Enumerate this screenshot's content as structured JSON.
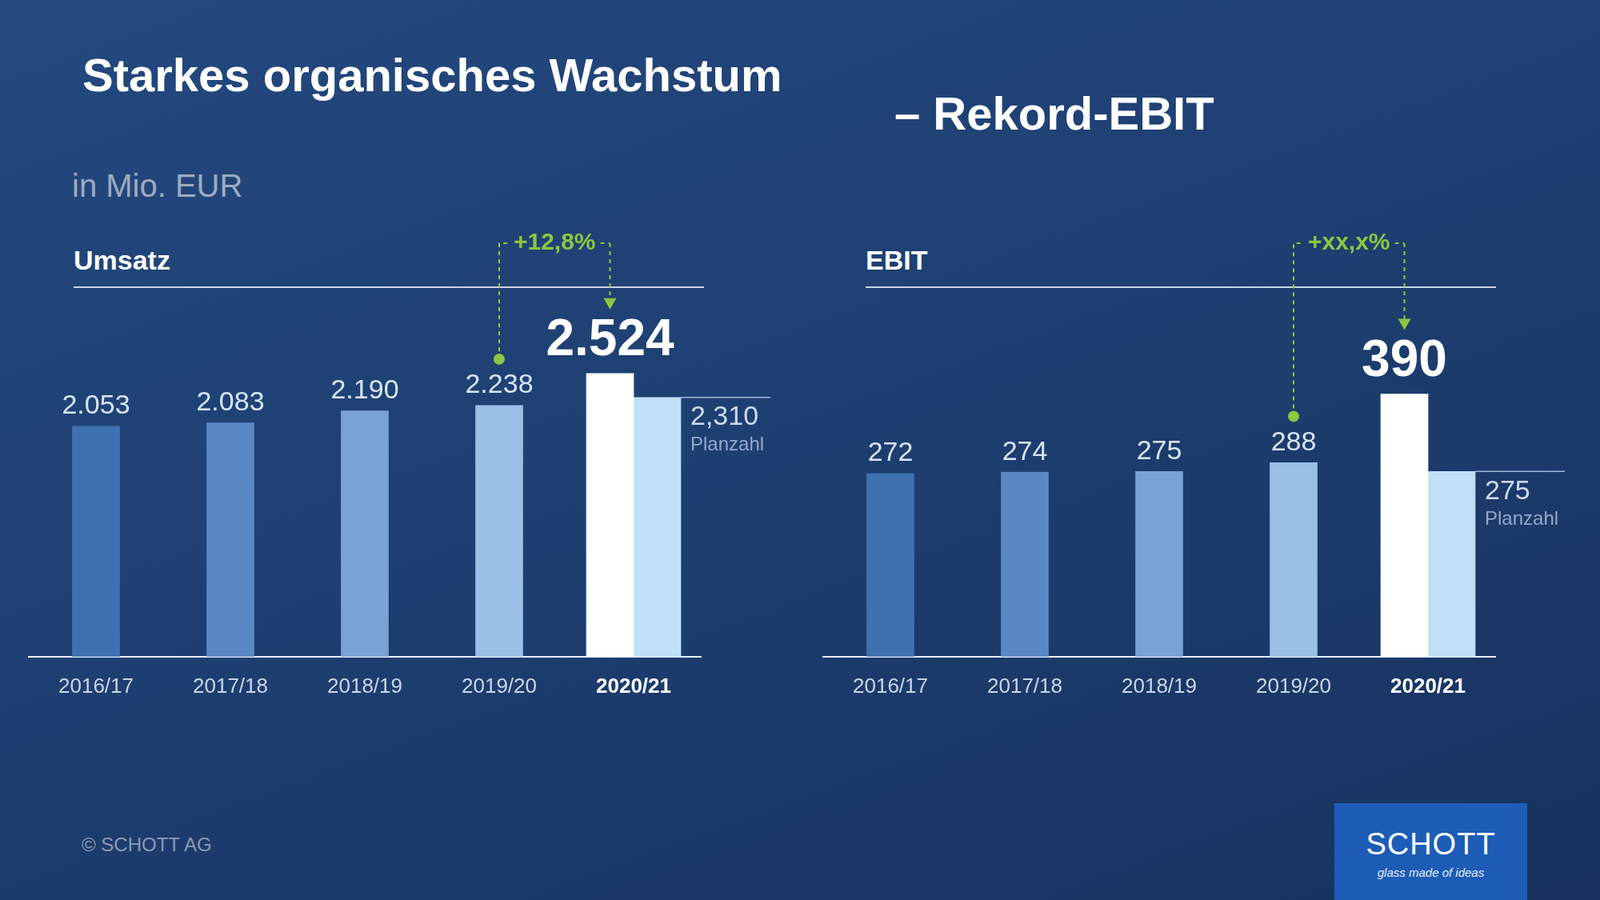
{
  "header": {
    "title": "Starkes organisches Wachstum",
    "title_suffix": "– Rekord-EBIT",
    "unit": "in Mio. EUR"
  },
  "footer": {
    "copyright": "© SCHOTT AG",
    "logo": "SCHOTT",
    "logo_claim": "glass made of ideas"
  },
  "chart_data": [
    {
      "type": "bar",
      "title": "Umsatz",
      "categories": [
        "2016/17",
        "2017/18",
        "2018/19",
        "2019/20",
        "2020/21"
      ],
      "series": [
        {
          "values": [
            2053,
            2083,
            2190,
            2238,
            2524
          ],
          "value_labels": [
            "2.053",
            "2.083",
            "2.190",
            "2.238",
            "2.524"
          ],
          "colors": [
            "#3f70b0",
            "#5a88c4",
            "#7aa2d3",
            "#9ac0e6",
            "#ffffff"
          ]
        },
        {
          "name": "Planzahl",
          "values": [
            null,
            null,
            null,
            null,
            2310
          ],
          "value_labels": [
            null,
            null,
            null,
            null,
            "2,310"
          ],
          "color": "#bfe0f7"
        }
      ],
      "ylim": [
        0,
        3000
      ],
      "yticks": [
        0,
        1000,
        2000,
        3000
      ],
      "grid": false,
      "data_labels": true,
      "tick_labels": "x",
      "annotations": [
        {
          "text": "+12,8%",
          "from": "2019/20",
          "to": "2020/21"
        }
      ]
    },
    {
      "type": "bar",
      "title": "EBIT",
      "categories": [
        "2016/17",
        "2017/18",
        "2018/19",
        "2019/20",
        "2020/21"
      ],
      "series": [
        {
          "values": [
            272,
            274,
            275,
            288,
            390
          ],
          "value_labels": [
            "272",
            "274",
            "275",
            "288",
            "390"
          ],
          "colors": [
            "#3f70b0",
            "#5a88c4",
            "#7aa2d3",
            "#9ac0e6",
            "#ffffff"
          ]
        },
        {
          "name": "Planzahl",
          "values": [
            null,
            null,
            null,
            null,
            275
          ],
          "value_labels": [
            null,
            null,
            null,
            null,
            "275"
          ],
          "color": "#bfe0f7"
        }
      ],
      "ylim": [
        0,
        500
      ],
      "yticks": [
        0,
        100,
        200,
        300,
        400,
        500
      ],
      "grid": false,
      "data_labels": true,
      "tick_labels": "x",
      "annotations": [
        {
          "text": "+xx,x%",
          "from": "2019/20",
          "to": "2020/21"
        }
      ]
    }
  ]
}
